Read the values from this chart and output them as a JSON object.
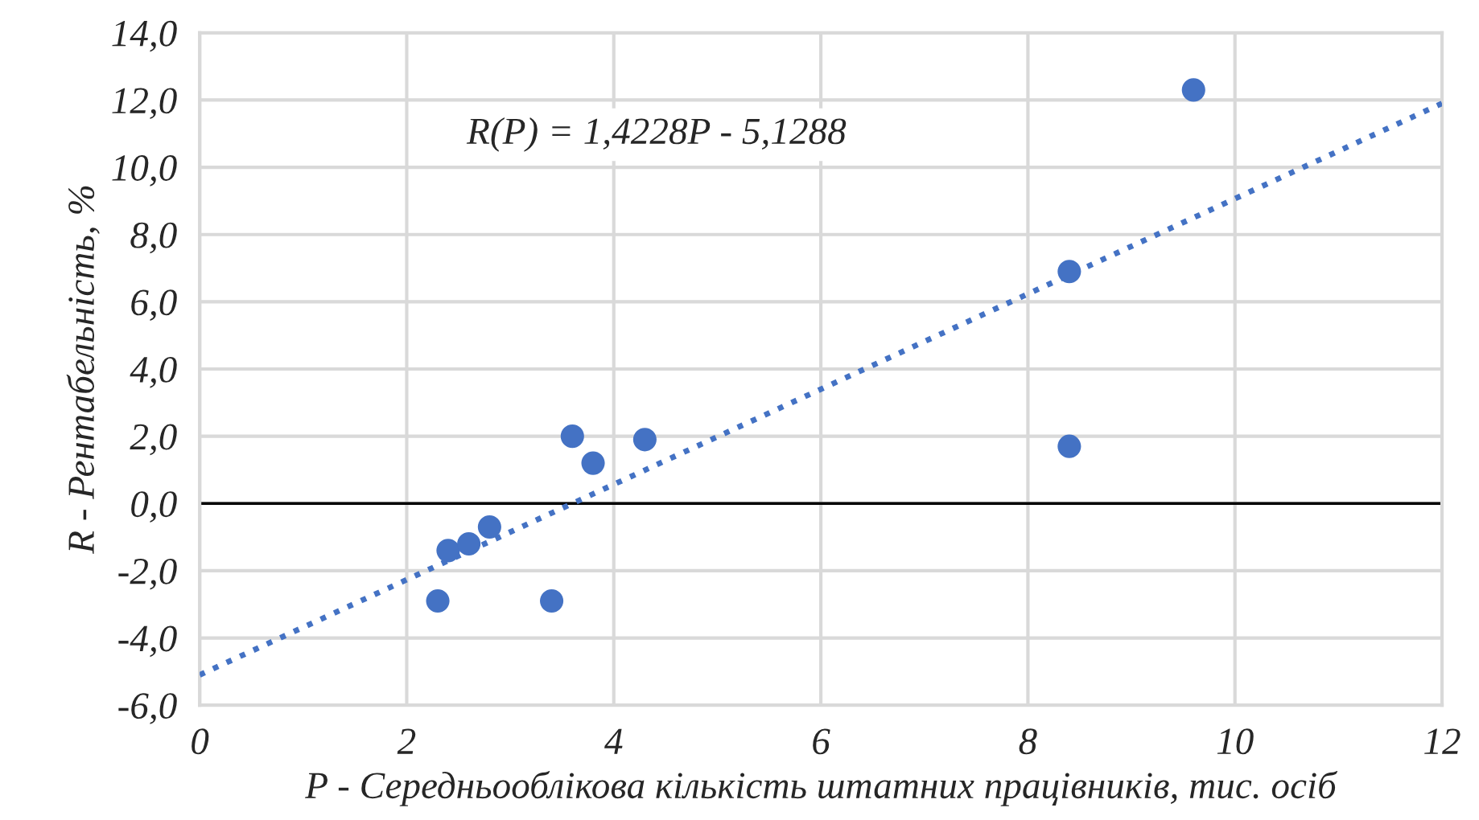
{
  "chart_data": {
    "type": "scatter",
    "xlabel": "P - Середньооблікова кількість штатних працівників, тис. осіб",
    "ylabel": "R - Рентабельність, %",
    "annotations": [
      "R(P) = 1,4228P - 5,1288"
    ],
    "series": [
      {
        "color": "#4472c4",
        "marker": "circle",
        "x": [
          2.3,
          2.4,
          2.6,
          2.8,
          3.4,
          3.6,
          3.8,
          4.3,
          8.4,
          8.4,
          9.6
        ],
        "values": [
          -2.9,
          -1.4,
          -1.2,
          -0.7,
          -2.9,
          2.0,
          1.2,
          1.9,
          6.9,
          1.7,
          12.3
        ]
      },
      {
        "type": "line",
        "color": "#4472c4",
        "line_style": "dotted",
        "marker": "none",
        "x": [
          0,
          12
        ],
        "values": [
          -5.1,
          11.9
        ]
      }
    ],
    "xlim": [
      0,
      12
    ],
    "xticks": [
      0,
      2,
      4,
      6,
      8,
      10,
      12
    ],
    "ylim": [
      -6,
      14
    ],
    "yticks": [
      {
        "value": -6,
        "label": "-6,0"
      },
      {
        "value": -4,
        "label": "-4,0"
      },
      {
        "value": -2,
        "label": "-2,0"
      },
      {
        "value": 0,
        "label": "0,0"
      },
      {
        "value": 2,
        "label": "2,0"
      },
      {
        "value": 4,
        "label": "4,0"
      },
      {
        "value": 6,
        "label": "6,0"
      },
      {
        "value": 8,
        "label": "8,0"
      },
      {
        "value": 10,
        "label": "10,0"
      },
      {
        "value": 12,
        "label": "12,0"
      },
      {
        "value": 14,
        "label": "14,0"
      }
    ],
    "ref_lines": [
      {
        "axis": "y",
        "value": 0,
        "color": "#000000"
      }
    ],
    "grid": true,
    "legend": false
  }
}
